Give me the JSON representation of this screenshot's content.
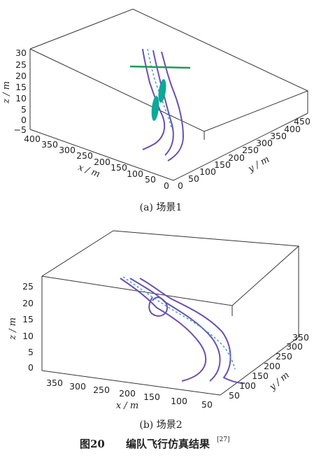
{
  "chart_data": [
    {
      "type": "line",
      "panel": "a",
      "caption": "(a)  场景1",
      "xlabel": "x / m",
      "ylabel": "y / m",
      "zlabel": "z / m",
      "xticks": [
        "400",
        "350",
        "300",
        "250",
        "200",
        "150",
        "100",
        "50",
        "0"
      ],
      "yticks": [
        "0",
        "50",
        "100",
        "150",
        "200",
        "250",
        "300",
        "350",
        "400",
        "450"
      ],
      "zticks": [
        "30",
        "25",
        "20",
        "15",
        "10",
        "5",
        "0",
        "−5"
      ],
      "series": [],
      "colors": {
        "paths": "#6a4fb0",
        "dashed": "#3aa0c8",
        "obstacle": "#0fa898",
        "bar": "#1e9a5a"
      }
    },
    {
      "type": "line",
      "panel": "b",
      "caption": "(b)  场景2",
      "xlabel": "x / m",
      "ylabel": "y / m",
      "zlabel": "z / m",
      "xticks": [
        "350",
        "300",
        "250",
        "200",
        "150",
        "100",
        "50"
      ],
      "yticks": [
        "50",
        "100",
        "150",
        "200",
        "250",
        "300",
        "350"
      ],
      "zticks": [
        "25",
        "20",
        "15",
        "10",
        "5",
        "0"
      ],
      "series": [],
      "colors": {
        "paths": "#6a4fb0",
        "dashed": "#3aa0c8"
      }
    }
  ],
  "figure": {
    "label": "图20",
    "title": "编队飞行仿真结果",
    "ref": "[27]"
  }
}
